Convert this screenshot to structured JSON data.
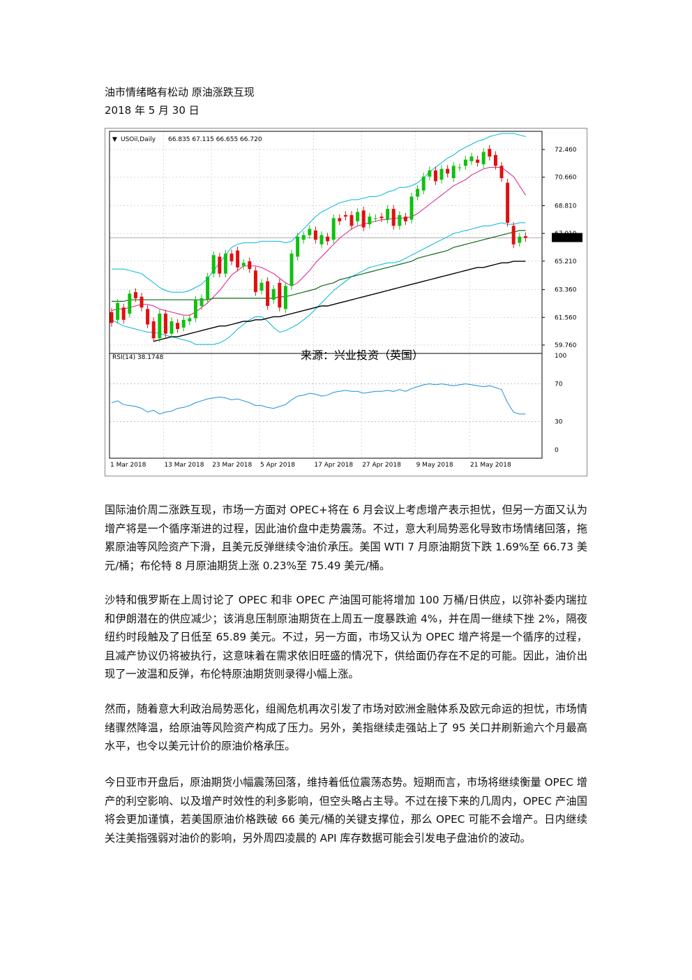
{
  "document": {
    "title": "油市情绪略有松动  原油涨跌互现",
    "date": "2018 年 5 月 30 日",
    "paragraphs": [
      "国际油价周二涨跌互现，市场一方面对 OPEC+将在 6 月会议上考虑增产表示担忧，但另一方面又认为增产将是一个循序渐进的过程，因此油价盘中走势震荡。不过，意大利局势恶化导致市场情绪回落，拖累原油等风险资产下滑，且美元反弹继续令油价承压。美国 WTI 7 月原油期货下跌 1.69%至 66.73 美元/桶；布伦特 8 月原油期货上涨 0.23%至 75.49 美元/桶。",
      "沙特和俄罗斯在上周讨论了 OPEC 和非 OPEC 产油国可能将增加 100 万桶/日供应，以弥补委内瑞拉和伊朗潜在的供应减少；该消息压制原油期货在上周五一度暴跌逾 4%，并在周一继续下挫 2%，隔夜纽约时段触及了日低至 65.89 美元。不过，另一方面，市场又认为 OPEC 增产将是一个循序的过程，且减产协议仍将被执行，这意味着在需求依旧旺盛的情况下，供给面仍存在不足的可能。因此，油价出现了一波温和反弹，布伦特原油期货则录得小幅上涨。",
      "然而，随着意大利政治局势恶化，组阁危机再次引发了市场对欧洲金融体系及欧元命运的担忧，市场情绪骤然降温，给原油等风险资产构成了压力。另外，美指继续走强站上了 95 关口并刷新逾六个月最高水平，也令以美元计价的原油价格承压。",
      "今日亚市开盘后，原油期货小幅震荡回落，维持着低位震荡态势。短期而言，市场将继续衡量 OPEC 增产的利空影响、以及增产时效性的利多影响，但空头略占主导。不过在接下来的几周内，OPEC 产油国将会更加谨慎，若美国原油价格跌破 66 美元/桶的关键支撑位，那么 OPEC 可能不会增产。日内继续关注美指强弱对油价的影响，另外周四凌晨的 API 库存数据可能会引发电子盘油价的波动。"
    ]
  },
  "chart_data": {
    "type": "candlestick",
    "symbol_header": "USOil,Daily",
    "ohlc_header": "66.835 67.115 66.655 66.720",
    "current_price_label": "66.720",
    "current_price": 66.72,
    "source_label": "来源：兴业投资（英国）",
    "price_axis": {
      "ticks": [
        "72.460",
        "70.660",
        "68.810",
        "67.010",
        "65.210",
        "63.360",
        "61.560",
        "59.760"
      ],
      "ylim": [
        59.76,
        72.46
      ]
    },
    "rsi_label": "RSI(14) 38.1748",
    "rsi_axis": {
      "ticks": [
        "100",
        "70",
        "30",
        "0"
      ],
      "ylim": [
        0,
        100
      ],
      "levels": [
        70,
        30
      ]
    },
    "x_axis_labels": [
      "1 Mar 2018",
      "13 Mar 2018",
      "23 Mar 2018",
      "5 Apr 2018",
      "17 Apr 2018",
      "27 Apr 2018",
      "9 May 2018",
      "21 May 2018"
    ],
    "candles": [
      {
        "o": 61.9,
        "c": 61.2
      },
      {
        "o": 61.4,
        "c": 62.5
      },
      {
        "o": 62.2,
        "c": 61.4
      },
      {
        "o": 61.8,
        "c": 63.1
      },
      {
        "o": 63.2,
        "c": 62.8
      },
      {
        "o": 62.9,
        "c": 62.2
      },
      {
        "o": 62.1,
        "c": 61.1
      },
      {
        "o": 61.3,
        "c": 60.2
      },
      {
        "o": 60.2,
        "c": 61.8
      },
      {
        "o": 61.8,
        "c": 60.5
      },
      {
        "o": 60.5,
        "c": 61.3
      },
      {
        "o": 61.2,
        "c": 60.8
      },
      {
        "o": 60.9,
        "c": 61.4
      },
      {
        "o": 61.3,
        "c": 61.5
      },
      {
        "o": 61.5,
        "c": 62.7
      },
      {
        "o": 62.3,
        "c": 62.8
      },
      {
        "o": 62.7,
        "c": 64.2
      },
      {
        "o": 64.4,
        "c": 65.6
      },
      {
        "o": 65.5,
        "c": 64.4
      },
      {
        "o": 64.4,
        "c": 65.7
      },
      {
        "o": 65.7,
        "c": 65.2
      },
      {
        "o": 65.9,
        "c": 64.8
      },
      {
        "o": 64.9,
        "c": 65.1
      },
      {
        "o": 65.2,
        "c": 64.7
      },
      {
        "o": 64.6,
        "c": 63.2
      },
      {
        "o": 63.3,
        "c": 63.8
      },
      {
        "o": 63.9,
        "c": 62.3
      },
      {
        "o": 62.7,
        "c": 63.4
      },
      {
        "o": 63.8,
        "c": 62.2
      },
      {
        "o": 62.1,
        "c": 63.6
      },
      {
        "o": 63.6,
        "c": 65.7
      },
      {
        "o": 65.5,
        "c": 66.8
      },
      {
        "o": 66.6,
        "c": 66.9
      },
      {
        "o": 66.9,
        "c": 67.3
      },
      {
        "o": 67.2,
        "c": 66.6
      },
      {
        "o": 66.3,
        "c": 66.9
      },
      {
        "o": 66.8,
        "c": 66.5
      },
      {
        "o": 66.6,
        "c": 68.0
      },
      {
        "o": 68.0,
        "c": 67.8
      },
      {
        "o": 68.2,
        "c": 68.1
      },
      {
        "o": 68.2,
        "c": 67.5
      },
      {
        "o": 67.8,
        "c": 68.4
      },
      {
        "o": 68.5,
        "c": 67.4
      },
      {
        "o": 67.6,
        "c": 68.1
      },
      {
        "o": 68.0,
        "c": 68.0
      },
      {
        "o": 68.1,
        "c": 68.0
      },
      {
        "o": 67.9,
        "c": 68.6
      },
      {
        "o": 68.6,
        "c": 67.5
      },
      {
        "o": 67.5,
        "c": 68.2
      },
      {
        "o": 68.1,
        "c": 67.8
      },
      {
        "o": 67.9,
        "c": 69.4
      },
      {
        "o": 69.4,
        "c": 69.9
      },
      {
        "o": 69.8,
        "c": 70.7
      },
      {
        "o": 70.7,
        "c": 71.1
      },
      {
        "o": 71.1,
        "c": 70.4
      },
      {
        "o": 70.5,
        "c": 71.2
      },
      {
        "o": 71.2,
        "c": 70.9
      },
      {
        "o": 70.6,
        "c": 71.4
      },
      {
        "o": 71.3,
        "c": 71.3
      },
      {
        "o": 71.4,
        "c": 71.8
      },
      {
        "o": 71.7,
        "c": 72.0
      },
      {
        "o": 71.8,
        "c": 71.6
      },
      {
        "o": 71.5,
        "c": 72.3
      },
      {
        "o": 72.5,
        "c": 72.0
      },
      {
        "o": 72.1,
        "c": 71.4
      },
      {
        "o": 71.4,
        "c": 70.6
      },
      {
        "o": 70.3,
        "c": 67.7
      },
      {
        "o": 67.5,
        "c": 66.3
      },
      {
        "o": 66.4,
        "c": 66.8
      },
      {
        "o": 66.83,
        "c": 66.72
      }
    ],
    "sma_fast": [
      62.0,
      62.1,
      62.1,
      62.2,
      62.3,
      62.4,
      62.4,
      62.3,
      62.1,
      62.0,
      61.9,
      61.8,
      61.7,
      61.7,
      61.9,
      62.2,
      62.5,
      62.9,
      63.3,
      63.8,
      64.3,
      64.6,
      64.9,
      64.9,
      64.9,
      64.8,
      64.6,
      64.4,
      64.1,
      63.8,
      63.6,
      63.8,
      64.2,
      64.6,
      65.1,
      65.5,
      65.9,
      66.3,
      66.7,
      67.0,
      67.3,
      67.5,
      67.6,
      67.7,
      67.8,
      67.9,
      67.9,
      68.0,
      68.0,
      68.0,
      68.1,
      68.3,
      68.6,
      68.9,
      69.2,
      69.5,
      69.8,
      70.1,
      70.3,
      70.5,
      70.8,
      71.0,
      71.2,
      71.3,
      71.3,
      71.3,
      71.0,
      70.7,
      70.1,
      69.5
    ],
    "bb_upper": [
      64.7,
      64.7,
      64.7,
      64.6,
      64.5,
      64.4,
      64.1,
      63.8,
      63.5,
      63.3,
      63.2,
      63.2,
      63.2,
      63.3,
      63.5,
      63.7,
      64.1,
      64.6,
      65.1,
      65.6,
      66.1,
      66.3,
      66.4,
      66.4,
      66.4,
      66.5,
      66.5,
      66.5,
      66.5,
      66.4,
      66.5,
      66.9,
      67.3,
      67.7,
      68.1,
      68.4,
      68.6,
      68.8,
      69.0,
      69.1,
      69.2,
      69.2,
      69.3,
      69.4,
      69.4,
      69.5,
      69.7,
      69.8,
      70.0,
      70.0,
      70.1,
      70.3,
      70.6,
      71.0,
      71.3,
      71.6,
      71.9,
      72.1,
      72.4,
      72.6,
      72.8,
      73.0,
      73.1,
      73.3,
      73.4,
      73.5,
      73.5,
      73.5,
      73.4,
      73.3
    ],
    "bb_lower": [
      61.4,
      61.2,
      61.0,
      60.9,
      60.8,
      60.7,
      60.6,
      60.6,
      60.5,
      60.4,
      60.3,
      60.2,
      60.1,
      60.0,
      59.8,
      59.8,
      59.8,
      59.8,
      59.9,
      60.1,
      60.4,
      60.8,
      61.1,
      61.4,
      61.6,
      61.6,
      61.3,
      60.9,
      60.6,
      60.7,
      60.9,
      61.1,
      61.4,
      61.7,
      62.1,
      62.5,
      62.9,
      63.3,
      63.6,
      63.9,
      64.2,
      64.4,
      64.6,
      64.8,
      64.9,
      65.0,
      65.1,
      65.1,
      65.2,
      65.4,
      65.6,
      65.8,
      66.0,
      66.2,
      66.4,
      66.6,
      66.8,
      67.0,
      67.1,
      67.2,
      67.3,
      67.4,
      67.5,
      67.5,
      67.6,
      67.7,
      67.6,
      67.6,
      67.7,
      67.7
    ],
    "ma_green": [
      62.6,
      62.6,
      62.6,
      62.7,
      62.7,
      62.7,
      62.7,
      62.7,
      62.7,
      62.7,
      62.7,
      62.7,
      62.7,
      62.7,
      62.7,
      62.7,
      62.7,
      62.8,
      62.8,
      62.8,
      62.8,
      62.8,
      62.8,
      62.8,
      62.8,
      62.8,
      62.8,
      62.8,
      62.9,
      62.9,
      63.0,
      63.1,
      63.2,
      63.3,
      63.4,
      63.6,
      63.7,
      63.8,
      64.0,
      64.1,
      64.2,
      64.3,
      64.4,
      64.5,
      64.6,
      64.7,
      64.8,
      64.9,
      65.0,
      65.1,
      65.2,
      65.4,
      65.5,
      65.6,
      65.7,
      65.8,
      65.9,
      66.1,
      66.2,
      66.3,
      66.4,
      66.5,
      66.6,
      66.7,
      66.8,
      66.9,
      67.0,
      67.1,
      67.2,
      67.2
    ],
    "ma_black": [
      null,
      null,
      null,
      null,
      null,
      null,
      null,
      60.0,
      60.1,
      60.2,
      60.3,
      60.3,
      60.4,
      60.5,
      60.6,
      60.7,
      60.8,
      60.9,
      61.0,
      61.0,
      61.1,
      61.2,
      61.3,
      61.3,
      61.4,
      61.4,
      61.5,
      61.6,
      61.6,
      61.7,
      61.8,
      61.9,
      62.0,
      62.1,
      62.2,
      62.3,
      62.3,
      62.4,
      62.5,
      62.6,
      62.7,
      62.8,
      62.9,
      63.0,
      63.1,
      63.2,
      63.3,
      63.4,
      63.5,
      63.6,
      63.7,
      63.8,
      63.9,
      64.0,
      64.1,
      64.2,
      64.3,
      64.4,
      64.5,
      64.6,
      64.7,
      64.8,
      64.8,
      64.9,
      65.0,
      65.1,
      65.1,
      65.2,
      65.2,
      65.2
    ],
    "rsi": [
      50,
      52,
      48,
      47,
      46,
      44,
      40,
      42,
      38,
      40,
      41,
      44,
      45,
      47,
      50,
      52,
      54,
      55,
      56,
      55,
      53,
      54,
      52,
      50,
      47,
      47,
      45,
      44,
      46,
      48,
      53,
      57,
      58,
      60,
      59,
      57,
      58,
      61,
      62,
      63,
      62,
      62,
      60,
      61,
      62,
      62,
      63,
      62,
      64,
      62,
      65,
      67,
      69,
      70,
      69,
      70,
      69,
      68,
      69,
      70,
      69,
      68,
      67,
      68,
      66,
      64,
      50,
      40,
      38,
      38
    ]
  }
}
